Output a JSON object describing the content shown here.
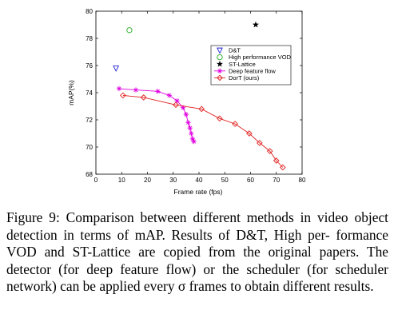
{
  "chart_data": {
    "type": "scatter",
    "xlabel": "Frame rate (fps)",
    "ylabel": "mAP(%)",
    "xlim": [
      0,
      80
    ],
    "ylim": [
      68,
      80
    ],
    "xticks": [
      0,
      10,
      20,
      30,
      40,
      50,
      60,
      70,
      80
    ],
    "yticks": [
      68,
      70,
      72,
      74,
      76,
      78,
      80
    ],
    "grid": false,
    "legend_position": "top-right",
    "series": [
      {
        "name": "D&T",
        "marker": "triangle-down",
        "color": "#1f1fcf",
        "line": false,
        "points": [
          [
            7.8,
            75.8
          ]
        ]
      },
      {
        "name": "High performance VOD",
        "marker": "circle",
        "color": "#22aa22",
        "line": false,
        "points": [
          [
            13.0,
            78.6
          ]
        ]
      },
      {
        "name": "ST-Lattice",
        "marker": "star",
        "color": "#000000",
        "line": false,
        "points": [
          [
            62.0,
            79.0
          ]
        ]
      },
      {
        "name": "Deep feature flow",
        "marker": "asterisk",
        "color": "#e000e0",
        "line": true,
        "points": [
          [
            9.0,
            74.3
          ],
          [
            15.5,
            74.2
          ],
          [
            24.0,
            74.1
          ],
          [
            28.5,
            73.8
          ],
          [
            31.5,
            73.4
          ],
          [
            33.8,
            72.9
          ],
          [
            35.0,
            72.4
          ],
          [
            35.8,
            71.8
          ],
          [
            36.5,
            71.4
          ],
          [
            37.0,
            71.0
          ],
          [
            37.5,
            70.6
          ],
          [
            38.0,
            70.4
          ]
        ]
      },
      {
        "name": "DorT (ours)",
        "marker": "diamond",
        "color": "#e02020",
        "line": true,
        "points": [
          [
            10.5,
            73.8
          ],
          [
            18.5,
            73.65
          ],
          [
            31.0,
            73.1
          ],
          [
            41.0,
            72.8
          ],
          [
            48.0,
            72.1
          ],
          [
            54.0,
            71.7
          ],
          [
            59.5,
            71.0
          ],
          [
            63.5,
            70.3
          ],
          [
            67.5,
            69.7
          ],
          [
            70.0,
            69.0
          ],
          [
            72.5,
            68.5
          ]
        ]
      }
    ]
  },
  "caption": {
    "lines": [
      "Figure 9: Comparison between different methods in video",
      "object detection in terms of mAP. Results of D&T, High per-",
      "formance VOD and ST-Lattice are copied from the original",
      "papers. The detector (for deep feature flow) or the scheduler",
      "(for scheduler network) can be applied every σ frames to",
      "obtain different results."
    ]
  }
}
